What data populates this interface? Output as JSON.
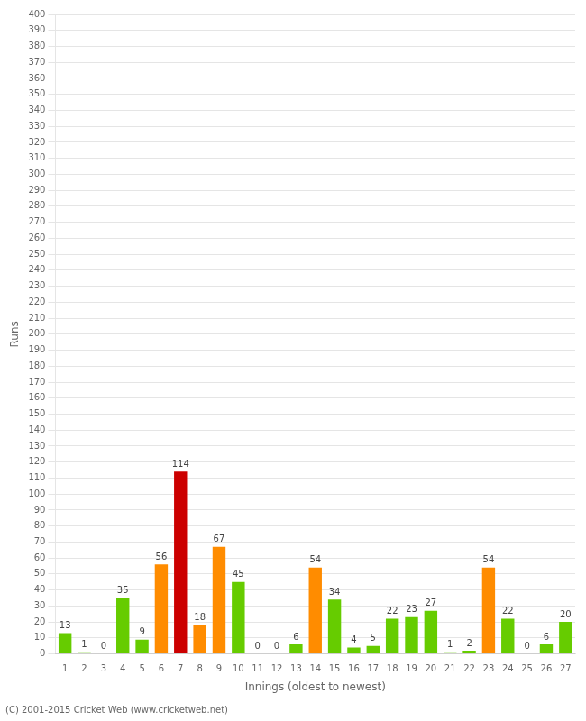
{
  "chart_data": {
    "type": "bar",
    "categories": [
      "1",
      "2",
      "3",
      "4",
      "5",
      "6",
      "7",
      "8",
      "9",
      "10",
      "11",
      "12",
      "13",
      "14",
      "15",
      "16",
      "17",
      "18",
      "19",
      "20",
      "21",
      "22",
      "23",
      "24",
      "25",
      "26",
      "27"
    ],
    "values": [
      13,
      1,
      0,
      35,
      9,
      56,
      114,
      18,
      67,
      45,
      0,
      0,
      6,
      54,
      34,
      4,
      5,
      22,
      23,
      27,
      1,
      2,
      54,
      22,
      0,
      6,
      20
    ],
    "colors": [
      "#66cc00",
      "#66cc00",
      "#66cc00",
      "#66cc00",
      "#66cc00",
      "#ff8c00",
      "#cc0000",
      "#ff8c00",
      "#ff8c00",
      "#66cc00",
      "#66cc00",
      "#66cc00",
      "#66cc00",
      "#ff8c00",
      "#66cc00",
      "#66cc00",
      "#66cc00",
      "#66cc00",
      "#66cc00",
      "#66cc00",
      "#66cc00",
      "#66cc00",
      "#ff8c00",
      "#66cc00",
      "#66cc00",
      "#66cc00",
      "#66cc00"
    ],
    "x_label": "Innings (oldest to newest)",
    "y_label": "Runs",
    "footer": "(C) 2001-2015 Cricket Web (www.cricketweb.net)",
    "ylim": [
      0,
      400
    ],
    "yticks": [
      0,
      10,
      20,
      30,
      40,
      50,
      60,
      70,
      80,
      90,
      100,
      110,
      120,
      130,
      140,
      150,
      160,
      170,
      180,
      190,
      200,
      210,
      220,
      230,
      240,
      250,
      260,
      270,
      280,
      290,
      300,
      310,
      320,
      330,
      340,
      350,
      360,
      370,
      380,
      390,
      400
    ],
    "grid": true,
    "data_labels": true,
    "legend": false
  }
}
